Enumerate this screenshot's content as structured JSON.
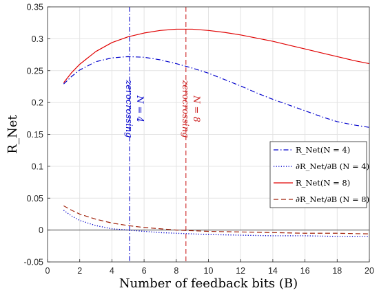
{
  "chart_data": {
    "type": "line",
    "xlabel": "Number of feedback bits (B)",
    "ylabel": "R_Net",
    "xlim": [
      0,
      20
    ],
    "ylim": [
      -0.05,
      0.35
    ],
    "xticks": [
      "0",
      "2",
      "4",
      "6",
      "8",
      "10",
      "12",
      "14",
      "16",
      "18",
      "20"
    ],
    "yticks": [
      "-0.05",
      "0",
      "0.05",
      "0.1",
      "0.15",
      "0.2",
      "0.25",
      "0.3",
      "0.35"
    ],
    "grid": true,
    "legend_placement": "right-middle",
    "series": [
      {
        "name": "R_Net(N = 4)",
        "color": "#0000cc",
        "style": "dashdot",
        "x": [
          1,
          1.5,
          2,
          3,
          4,
          5,
          6,
          7,
          8,
          9,
          10,
          11,
          12,
          13,
          14,
          15,
          16,
          17,
          18,
          19,
          20
        ],
        "y": [
          0.229,
          0.241,
          0.251,
          0.264,
          0.27,
          0.272,
          0.271,
          0.267,
          0.261,
          0.254,
          0.246,
          0.236,
          0.226,
          0.215,
          0.205,
          0.196,
          0.187,
          0.178,
          0.17,
          0.165,
          0.161
        ]
      },
      {
        "name": "∂R_Net/∂B (N = 4)",
        "color": "#0000cc",
        "style": "dotted",
        "x": [
          1,
          1.5,
          2,
          3,
          4,
          5,
          6,
          7,
          8,
          9,
          10,
          12,
          14,
          16,
          18,
          20
        ],
        "y": [
          0.031,
          0.022,
          0.015,
          0.007,
          0.002,
          0.0,
          -0.002,
          -0.004,
          -0.005,
          -0.006,
          -0.007,
          -0.008,
          -0.009,
          -0.009,
          -0.01,
          -0.01
        ]
      },
      {
        "name": "R_Net(N = 8)",
        "color": "#e00000",
        "style": "solid",
        "x": [
          1,
          1.5,
          2,
          3,
          4,
          5,
          6,
          7,
          8,
          9,
          10,
          11,
          12,
          13,
          14,
          15,
          16,
          17,
          18,
          19,
          20
        ],
        "y": [
          0.231,
          0.247,
          0.26,
          0.28,
          0.294,
          0.303,
          0.309,
          0.313,
          0.315,
          0.315,
          0.313,
          0.31,
          0.306,
          0.301,
          0.296,
          0.29,
          0.284,
          0.278,
          0.272,
          0.266,
          0.261
        ]
      },
      {
        "name": "∂R_Net/∂B (N = 8)",
        "color": "#a0200a",
        "style": "dashed",
        "x": [
          1,
          1.5,
          2,
          3,
          4,
          5,
          6,
          7,
          8,
          9,
          10,
          12,
          14,
          16,
          18,
          20
        ],
        "y": [
          0.038,
          0.031,
          0.025,
          0.017,
          0.011,
          0.007,
          0.004,
          0.002,
          0.0,
          -0.001,
          -0.002,
          -0.003,
          -0.004,
          -0.005,
          -0.005,
          -0.006
        ]
      }
    ],
    "annotations": [
      {
        "x": 5.1,
        "text1": "zerocrossing",
        "text2": "N = 4",
        "color": "#0000cc",
        "style": "dashdot"
      },
      {
        "x": 8.6,
        "text1": "zerocrossing",
        "text2": "N = 8",
        "color": "#cc2222",
        "style": "dashed"
      }
    ]
  }
}
